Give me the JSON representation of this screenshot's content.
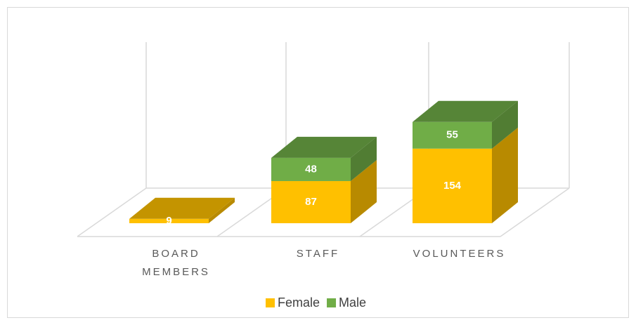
{
  "chart_data": {
    "type": "bar3d",
    "categories": [
      "BOARD MEMBERS",
      "STAFF",
      "VOLUNTEERS"
    ],
    "series": [
      {
        "name": "Female",
        "color": "#FFC000",
        "values": [
          9,
          87,
          154
        ]
      },
      {
        "name": "Male",
        "color": "#70AD47",
        "values": [
          null,
          48,
          55
        ]
      }
    ],
    "stacked": true,
    "legend": "bottom"
  }
}
